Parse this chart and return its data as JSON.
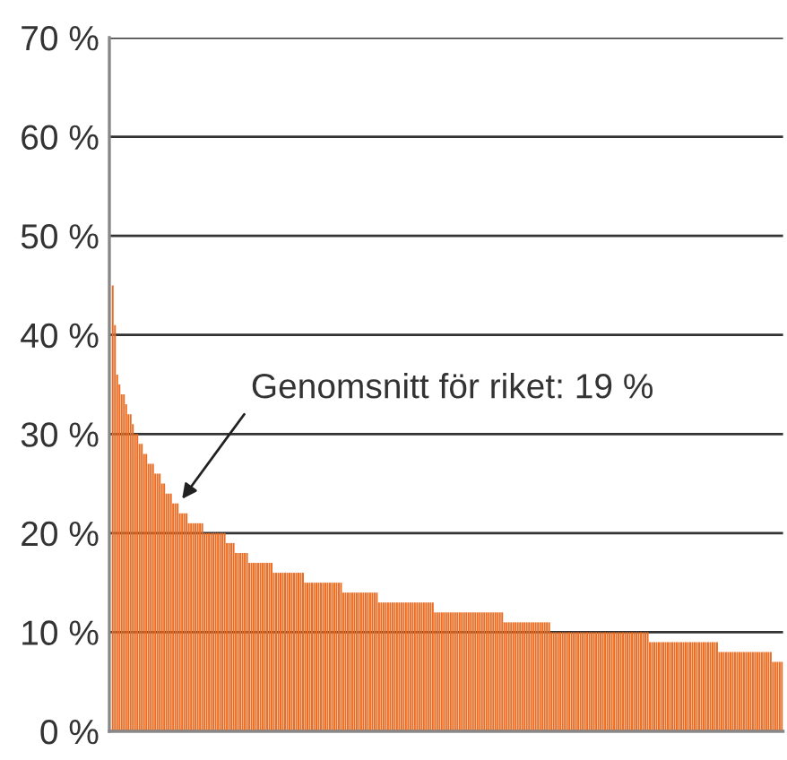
{
  "chart_data": {
    "type": "bar",
    "color": "#ea6d23",
    "grid": "y",
    "legend": false,
    "categories": [
      null,
      null,
      null,
      null,
      null,
      null,
      null,
      null,
      null,
      null,
      null,
      null,
      null,
      null,
      null,
      null,
      null,
      null,
      null,
      null,
      null,
      null,
      null,
      null,
      null,
      null,
      null,
      null,
      null,
      null,
      null,
      null,
      null,
      null,
      null,
      null,
      null,
      null,
      null,
      null,
      null,
      null,
      null,
      null,
      null,
      null,
      null,
      null,
      null,
      null,
      null,
      null,
      null,
      null,
      null,
      null,
      null,
      null,
      null,
      null,
      null,
      null,
      null,
      null,
      null,
      null,
      null,
      null,
      null,
      null,
      null,
      null,
      null,
      null,
      null,
      null,
      null,
      null,
      null,
      null,
      null,
      null,
      null,
      null,
      null,
      null,
      null,
      null,
      null,
      null,
      null,
      null,
      null,
      null,
      null,
      null,
      null,
      null,
      null,
      null,
      null,
      null,
      null,
      null,
      null,
      null,
      null,
      null,
      null,
      null,
      null,
      null,
      null,
      null,
      null,
      null,
      null,
      null,
      null,
      null,
      null,
      null,
      null,
      null,
      null,
      null,
      null,
      null,
      null,
      null,
      null,
      null,
      null,
      null,
      null,
      null,
      null,
      null,
      null,
      null,
      null,
      null,
      null,
      null,
      null,
      null,
      null,
      null,
      null,
      null,
      null,
      null,
      null,
      null,
      null,
      null,
      null,
      null,
      null,
      null,
      null,
      null,
      null,
      null,
      null,
      null,
      null,
      null,
      null,
      null,
      null,
      null,
      null,
      null,
      null,
      null,
      null,
      null,
      null,
      null,
      null,
      null,
      null,
      null,
      null,
      null,
      null,
      null,
      null,
      null,
      null,
      null,
      null,
      null,
      null,
      null,
      null,
      null,
      null,
      null,
      null,
      null,
      null,
      null,
      null,
      null,
      null,
      null,
      null,
      null,
      null,
      null,
      null,
      null,
      null,
      null,
      null,
      null,
      null,
      null,
      null,
      null,
      null,
      null,
      null,
      null,
      null,
      null,
      null,
      null,
      null,
      null,
      null,
      null,
      null,
      null,
      null,
      null,
      null,
      null,
      null,
      null,
      null,
      null,
      null,
      null,
      null,
      null,
      null,
      null,
      null,
      null,
      null,
      null,
      null,
      null,
      null,
      null,
      null,
      null,
      null,
      null,
      null,
      null,
      null,
      null,
      null,
      null,
      null,
      null,
      null,
      null,
      null,
      null,
      null,
      null,
      null,
      null,
      null,
      null,
      null,
      null,
      null,
      null,
      null,
      null,
      null,
      null,
      null,
      null,
      null,
      null,
      null,
      null,
      null,
      null,
      null,
      null,
      null,
      null
    ],
    "values": [
      45,
      41,
      36,
      35,
      34,
      34,
      33,
      32,
      32,
      31,
      30,
      30,
      29,
      29,
      28,
      28,
      27,
      27,
      27,
      26,
      26,
      26,
      25,
      25,
      24,
      24,
      24,
      23,
      23,
      23,
      22,
      22,
      22,
      22,
      21,
      21,
      21,
      21,
      21,
      21,
      21,
      20,
      20,
      20,
      20,
      20,
      20,
      20,
      20,
      20,
      20,
      19,
      19,
      19,
      19,
      18,
      18,
      18,
      18,
      18,
      18,
      17,
      17,
      17,
      17,
      17,
      17,
      17,
      17,
      17,
      17,
      17,
      16,
      16,
      16,
      16,
      16,
      16,
      16,
      16,
      16,
      16,
      16,
      16,
      16,
      16,
      15,
      15,
      15,
      15,
      15,
      15,
      15,
      15,
      15,
      15,
      15,
      15,
      15,
      15,
      15,
      15,
      15,
      14,
      14,
      14,
      14,
      14,
      14,
      14,
      14,
      14,
      14,
      14,
      14,
      14,
      14,
      14,
      14,
      13,
      13,
      13,
      13,
      13,
      13,
      13,
      13,
      13,
      13,
      13,
      13,
      13,
      13,
      13,
      13,
      13,
      13,
      13,
      13,
      13,
      13,
      13,
      13,
      13,
      12,
      12,
      12,
      12,
      12,
      12,
      12,
      12,
      12,
      12,
      12,
      12,
      12,
      12,
      12,
      12,
      12,
      12,
      12,
      12,
      12,
      12,
      12,
      12,
      12,
      12,
      12,
      12,
      12,
      12,
      12,
      11,
      11,
      11,
      11,
      11,
      11,
      11,
      11,
      11,
      11,
      11,
      11,
      11,
      11,
      11,
      11,
      11,
      11,
      11,
      11,
      11,
      10,
      10,
      10,
      10,
      10,
      10,
      10,
      10,
      10,
      10,
      10,
      10,
      10,
      10,
      10,
      10,
      10,
      10,
      10,
      10,
      10,
      10,
      10,
      10,
      10,
      10,
      10,
      10,
      10,
      10,
      10,
      10,
      10,
      10,
      10,
      10,
      10,
      10,
      10,
      10,
      10,
      10,
      10,
      10,
      9,
      9,
      9,
      9,
      9,
      9,
      9,
      9,
      9,
      9,
      9,
      9,
      9,
      9,
      9,
      9,
      9,
      9,
      9,
      9,
      9,
      9,
      9,
      9,
      9,
      9,
      9,
      9,
      9,
      9,
      9,
      8,
      8,
      8,
      8,
      8,
      8,
      8,
      8,
      8,
      8,
      8,
      8,
      8,
      8,
      8,
      8,
      8,
      8,
      8,
      8,
      8,
      8,
      8,
      8,
      7,
      7,
      7,
      7,
      7
    ],
    "ylim": [
      0,
      70
    ],
    "yticks": [
      {
        "value": 0,
        "label": "0 %"
      },
      {
        "value": 10,
        "label": "10 %"
      },
      {
        "value": 20,
        "label": "20 %"
      },
      {
        "value": 30,
        "label": "30 %"
      },
      {
        "value": 40,
        "label": "40 %"
      },
      {
        "value": 50,
        "label": "50 %"
      },
      {
        "value": 60,
        "label": "60 %"
      },
      {
        "value": 70,
        "label": "70 %"
      }
    ],
    "annotations": [
      "Genomsnitt för riket: 19 %"
    ]
  }
}
